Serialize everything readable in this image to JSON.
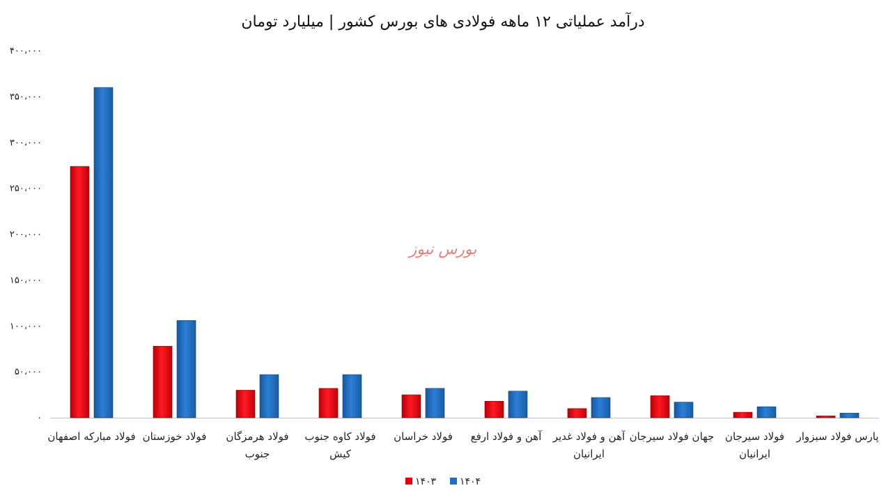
{
  "watermark": "بورس نیوز",
  "colors": {
    "series_1403": "#e8000b",
    "series_1404": "#1f6fc4",
    "axis": "#bfbfbf",
    "watermark": "#e06b6b"
  },
  "chart_data": {
    "type": "bar",
    "title": "درآمد عملیاتی ۱۲ ماهه فولادی های بورس کشور | میلیارد تومان",
    "categories": [
      [
        "فولاد مبارکه اصفهان"
      ],
      [
        "فولاد خوزستان"
      ],
      [
        "فولاد هرمزگان",
        "جنوب"
      ],
      [
        "فولاد کاوه جنوب",
        "کیش"
      ],
      [
        "فولاد خراسان"
      ],
      [
        "آهن و فولاد ارفع"
      ],
      [
        "آهن و فولاد غدیر",
        "ایرانیان"
      ],
      [
        "جهان فولاد سیرجان"
      ],
      [
        "فولاد سیرجان",
        "ایرانیان"
      ],
      [
        "پارس فولاد سبزوار"
      ]
    ],
    "series": [
      {
        "name": "۱۴۰۳",
        "values": [
          274000,
          78000,
          30000,
          32000,
          25000,
          18000,
          10000,
          24000,
          6000,
          2000
        ]
      },
      {
        "name": "۱۴۰۴",
        "values": [
          360000,
          106000,
          47000,
          47000,
          32000,
          29000,
          22000,
          17000,
          12000,
          5000
        ]
      }
    ],
    "ylim": [
      0,
      400000
    ],
    "y_ticks": [
      0,
      50000,
      100000,
      150000,
      200000,
      250000,
      300000,
      350000,
      400000
    ],
    "y_tick_labels": [
      "۰",
      "۵۰،۰۰۰",
      "۱۰۰،۰۰۰",
      "۱۵۰،۰۰۰",
      "۲۰۰،۰۰۰",
      "۲۵۰،۰۰۰",
      "۳۰۰،۰۰۰",
      "۳۵۰،۰۰۰",
      "۴۰۰،۰۰۰"
    ],
    "grid": false,
    "legend_position": "bottom-center"
  }
}
